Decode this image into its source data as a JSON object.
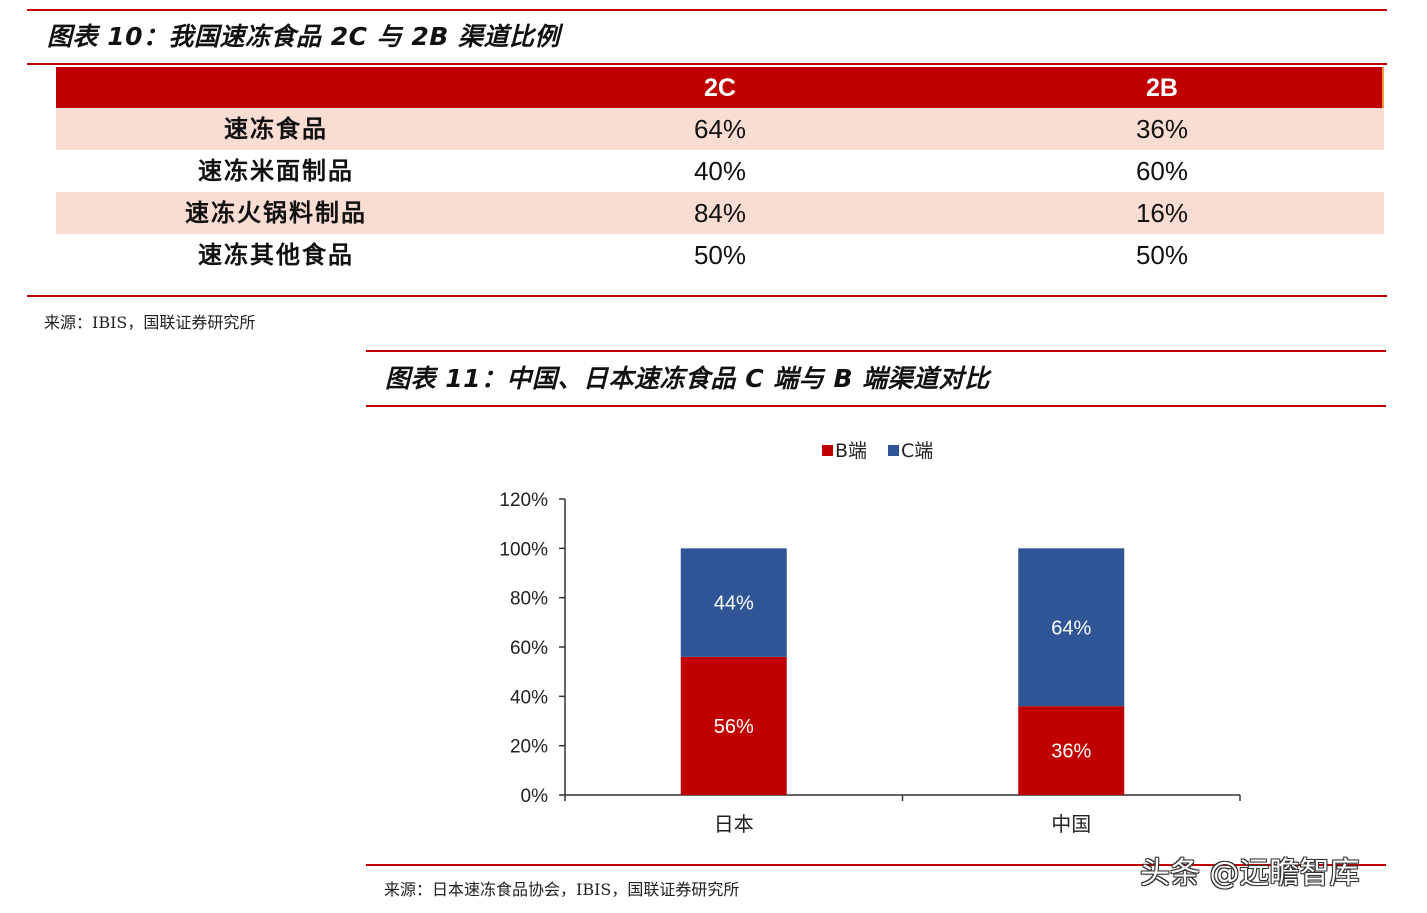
{
  "figure10": {
    "title": "图表 10：我国速冻食品 2C 与 2B 渠道比例",
    "columns": [
      "",
      "2C",
      "2B"
    ],
    "rows": [
      {
        "name": "速冻食品",
        "c2c": "64%",
        "c2b": "36%"
      },
      {
        "name": "速冻米面制品",
        "c2c": "40%",
        "c2b": "60%"
      },
      {
        "name": "速冻火锅料制品",
        "c2c": "84%",
        "c2b": "16%"
      },
      {
        "name": "速冻其他食品",
        "c2c": "50%",
        "c2b": "50%"
      }
    ],
    "source": "来源：IBIS，国联证券研究所"
  },
  "figure11": {
    "title": "图表 11：中国、日本速冻食品 C 端与 B 端渠道对比",
    "source": "来源：日本速冻食品协会，IBIS，国联证券研究所"
  },
  "watermark": "头条 @远瞻智库",
  "colors": {
    "accent": "#c00000",
    "b_series": "#c00000",
    "c_series": "#2f5597",
    "row_alt": "#f9ddd3"
  },
  "chart_data": {
    "type": "bar",
    "stacked": true,
    "categories": [
      "日本",
      "中国"
    ],
    "series": [
      {
        "name": "B端",
        "values": [
          56,
          36
        ],
        "labels": [
          "56%",
          "36%"
        ],
        "color": "#c00000"
      },
      {
        "name": "C端",
        "values": [
          44,
          64
        ],
        "labels": [
          "44%",
          "64%"
        ],
        "color": "#2f5597"
      }
    ],
    "ylim": [
      0,
      120
    ],
    "yticks": [
      "0%",
      "20%",
      "40%",
      "60%",
      "80%",
      "100%",
      "120%"
    ],
    "legend": "top",
    "grid": false
  }
}
